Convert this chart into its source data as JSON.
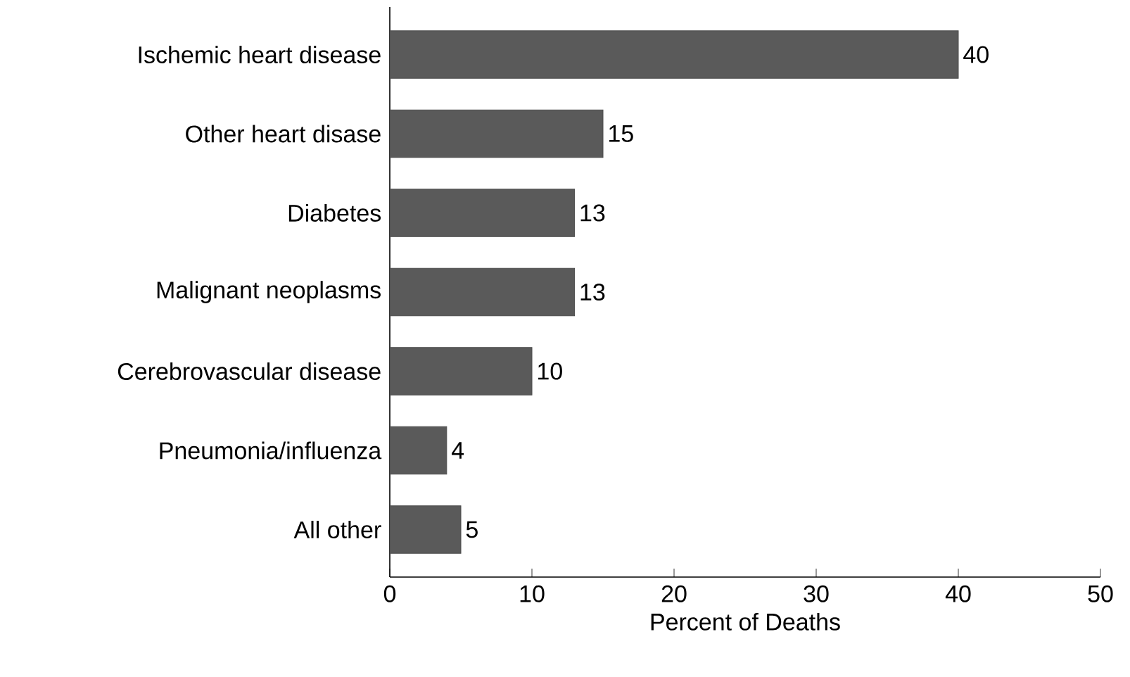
{
  "chart_data": {
    "type": "bar",
    "orientation": "horizontal",
    "xlabel": "Percent of Deaths",
    "categories": [
      "Ischemic heart disease",
      "Other heart disase",
      "Diabetes",
      "Malignant neoplasms",
      "Cerebrovascular disease",
      "Pneumonia/influenza",
      "All other"
    ],
    "values": [
      40,
      15,
      13,
      13,
      10,
      4,
      5
    ],
    "color": "#5a5a5a",
    "xlim": [
      0,
      50
    ],
    "xticks": [
      0,
      10,
      20,
      30,
      40,
      50
    ],
    "data_labels": true
  }
}
